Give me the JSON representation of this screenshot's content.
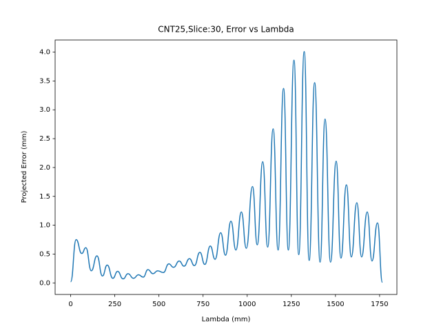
{
  "chart_data": {
    "type": "line",
    "title": "CNT25,Slice:30, Error vs Lambda",
    "xlabel": "Lambda (mm)",
    "ylabel": "Projected Error (mm)",
    "xlim": [
      -88,
      1848
    ],
    "ylim": [
      -0.2,
      4.21
    ],
    "xticks": [
      0,
      250,
      500,
      750,
      1000,
      1250,
      1500,
      1750
    ],
    "yticks": [
      {
        "value": 0,
        "label": "0.0"
      },
      0.5,
      {
        "value": 1,
        "label": "1.0"
      },
      1.5,
      {
        "value": 2,
        "label": "2.0"
      },
      2.5,
      {
        "value": 3,
        "label": "3.0"
      },
      3.5,
      {
        "value": 4,
        "label": "4.0"
      }
    ],
    "grid": false,
    "series": [
      {
        "color": "#1f77b4",
        "x": [
          0,
          31,
          63,
          86,
          117,
          149,
          180,
          207,
          239,
          266,
          297,
          325,
          356,
          384,
          411,
          438,
          466,
          493,
          525,
          556,
          583,
          615,
          642,
          673,
          701,
          732,
          760,
          791,
          818,
          850,
          877,
          908,
          936,
          967,
          995,
          1030,
          1057,
          1088,
          1116,
          1147,
          1175,
          1206,
          1233,
          1265,
          1292,
          1323,
          1351,
          1382,
          1413,
          1441,
          1472,
          1504,
          1531,
          1562,
          1590,
          1621,
          1648,
          1680,
          1707,
          1738,
          1766
        ],
        "values": [
          0.02,
          0.75,
          0.51,
          0.61,
          0.21,
          0.47,
          0.12,
          0.31,
          0.08,
          0.2,
          0.07,
          0.16,
          0.08,
          0.14,
          0.1,
          0.23,
          0.16,
          0.21,
          0.18,
          0.33,
          0.27,
          0.38,
          0.29,
          0.42,
          0.3,
          0.53,
          0.32,
          0.64,
          0.41,
          0.87,
          0.48,
          1.07,
          0.57,
          1.23,
          0.6,
          1.67,
          0.66,
          2.1,
          0.62,
          2.67,
          0.57,
          3.37,
          0.57,
          3.86,
          0.49,
          4.01,
          0.39,
          3.47,
          0.36,
          2.84,
          0.36,
          2.11,
          0.43,
          1.7,
          0.45,
          1.39,
          0.45,
          1.23,
          0.38,
          1.04,
          0.01
        ]
      }
    ]
  }
}
